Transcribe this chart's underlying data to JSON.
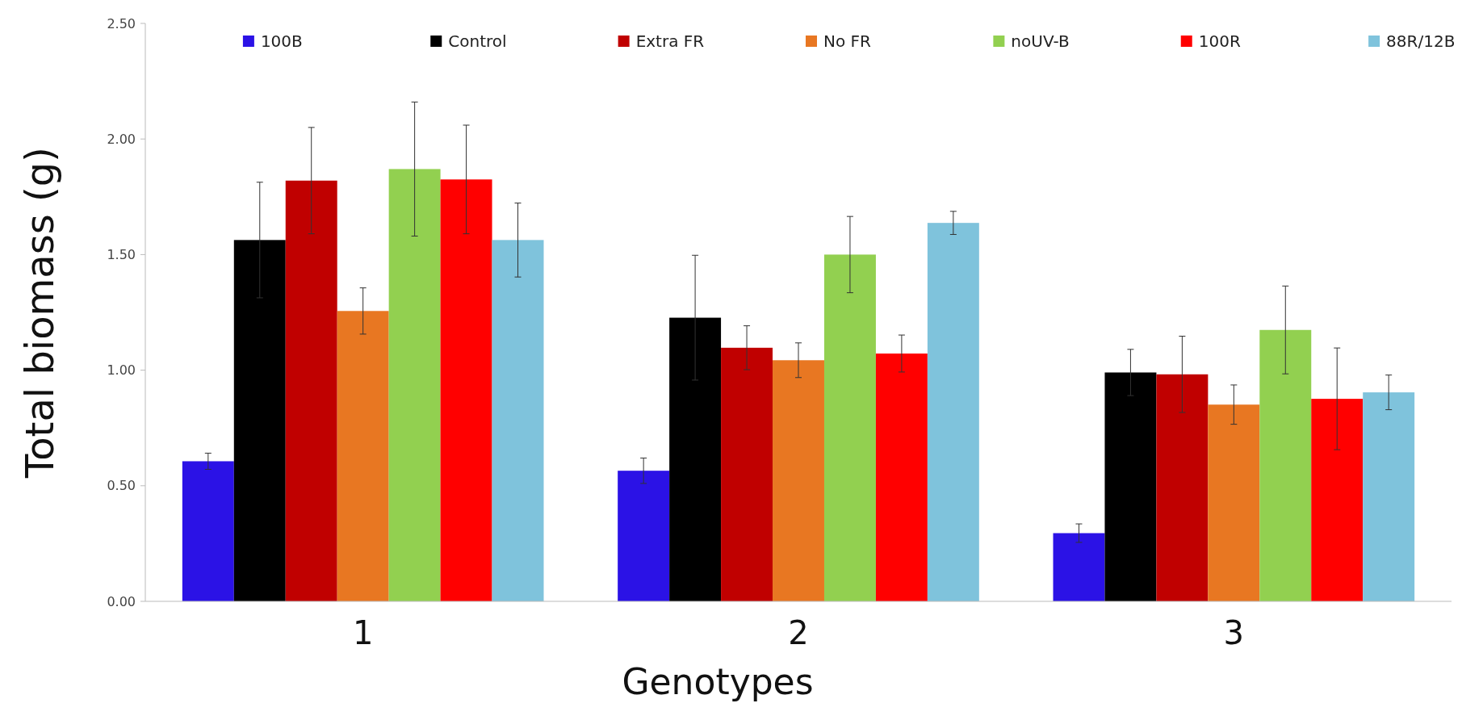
{
  "chart_data": {
    "type": "bar",
    "xlabel": "Genotypes",
    "ylabel": "Total biomass (g)",
    "categories": [
      "1",
      "2",
      "3"
    ],
    "ylim": [
      0,
      2.5
    ],
    "yticks": [
      {
        "value": 0,
        "label": "0.00"
      },
      {
        "value": 0.5,
        "label": "0.50"
      },
      {
        "value": 1,
        "label": "1.00"
      },
      {
        "value": 1.5,
        "label": "1.50"
      },
      {
        "value": 2,
        "label": "2.00"
      },
      {
        "value": 2.5,
        "label": "2.50"
      }
    ],
    "grid": false,
    "legend": "top",
    "series": [
      {
        "name": "100B",
        "color": "#2b12e6",
        "values": [
          0.606,
          0.565,
          0.295
        ],
        "errors": [
          0.035,
          0.055,
          0.04
        ]
      },
      {
        "name": "Control",
        "color": "#000000",
        "values": [
          1.563,
          1.227,
          0.99
        ],
        "errors": [
          0.25,
          0.27,
          0.1
        ]
      },
      {
        "name": "Extra FR",
        "color": "#c00000",
        "values": [
          1.82,
          1.097,
          0.982
        ],
        "errors": [
          0.23,
          0.095,
          0.165
        ]
      },
      {
        "name": "No FR",
        "color": "#e87722",
        "values": [
          1.256,
          1.043,
          0.851
        ],
        "errors": [
          0.1,
          0.075,
          0.085
        ]
      },
      {
        "name": "noUV-B",
        "color": "#92d050",
        "values": [
          1.87,
          1.5,
          1.174
        ],
        "errors": [
          0.29,
          0.165,
          0.19
        ]
      },
      {
        "name": "100R",
        "color": "#ff0000",
        "values": [
          1.825,
          1.072,
          0.876
        ],
        "errors": [
          0.235,
          0.08,
          0.22
        ]
      },
      {
        "name": "88R/12B",
        "color": "#7fc3dc",
        "values": [
          1.563,
          1.637,
          0.904
        ],
        "errors": [
          0.16,
          0.05,
          0.075
        ]
      }
    ]
  }
}
